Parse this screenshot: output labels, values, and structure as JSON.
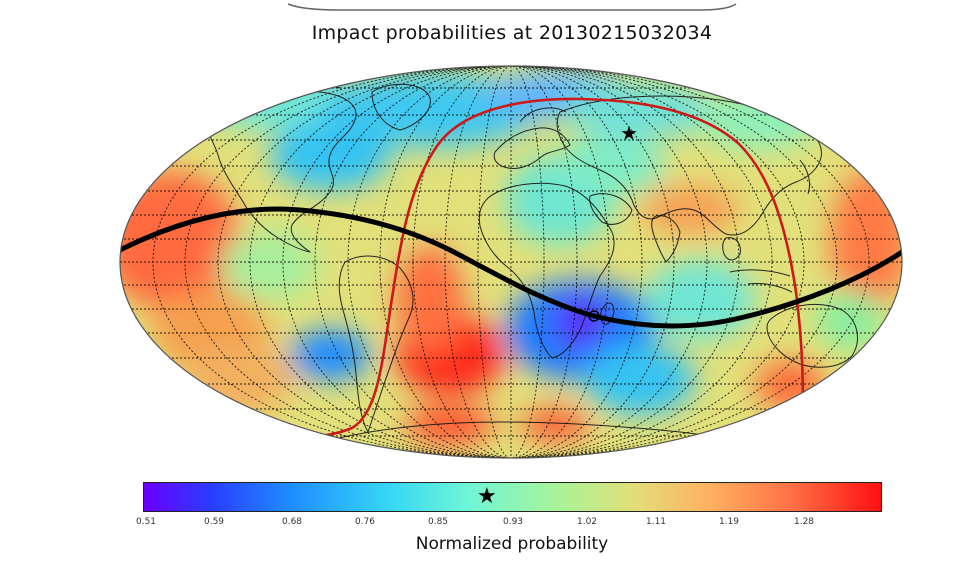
{
  "title": "Impact probabilities at 20130215032034",
  "colorbar": {
    "label": "Normalized probability",
    "ticks": [
      "0.51",
      "0.59",
      "0.68",
      "0.76",
      "0.85",
      "0.93",
      "1.02",
      "1.11",
      "1.19",
      "1.28"
    ],
    "star_symbol": "★"
  },
  "map": {
    "projection": "Robinson",
    "marker_symbol": "★",
    "colors": {
      "ocean_base": "#e2e07a",
      "high": "#ff4a2a",
      "low": "#2a5cff",
      "track": "#000000",
      "boundary": "#cc1a1a"
    }
  }
}
